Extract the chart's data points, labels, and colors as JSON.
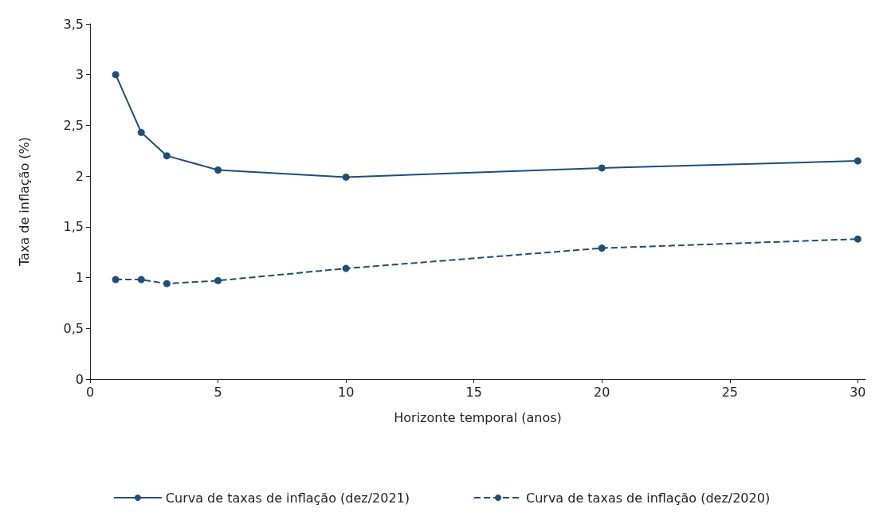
{
  "chart_data": {
    "type": "line",
    "xlabel": "Horizonte temporal (anos)",
    "ylabel": "Taxa de inflação (%)",
    "x": [
      1,
      2,
      3,
      5,
      10,
      20,
      30
    ],
    "series": [
      {
        "name": "Curva de taxas de inflação (dez/2021)",
        "color": "#1f4e79",
        "line_style": "solid",
        "values": [
          3.0,
          2.43,
          2.2,
          2.06,
          1.99,
          2.08,
          2.15
        ]
      },
      {
        "name": "Curva de taxas de inflação (dez/2020)",
        "color": "#1f4e79",
        "line_style": "dashed",
        "values": [
          0.98,
          0.98,
          0.94,
          0.97,
          1.09,
          1.29,
          1.38
        ]
      }
    ],
    "xlim": [
      0,
      30.3
    ],
    "xticks": [
      0,
      5,
      10,
      15,
      20,
      25,
      30
    ],
    "ylim": [
      0,
      3.5
    ],
    "yticks": [
      0,
      {
        "value": 0.5,
        "label": "0,5"
      },
      1,
      {
        "value": 1.5,
        "label": "1,5"
      },
      2,
      {
        "value": 2.5,
        "label": "2,5"
      },
      3,
      {
        "value": 3.5,
        "label": "3,5"
      }
    ],
    "grid": false,
    "legend": "bottom",
    "marker": "circle"
  }
}
